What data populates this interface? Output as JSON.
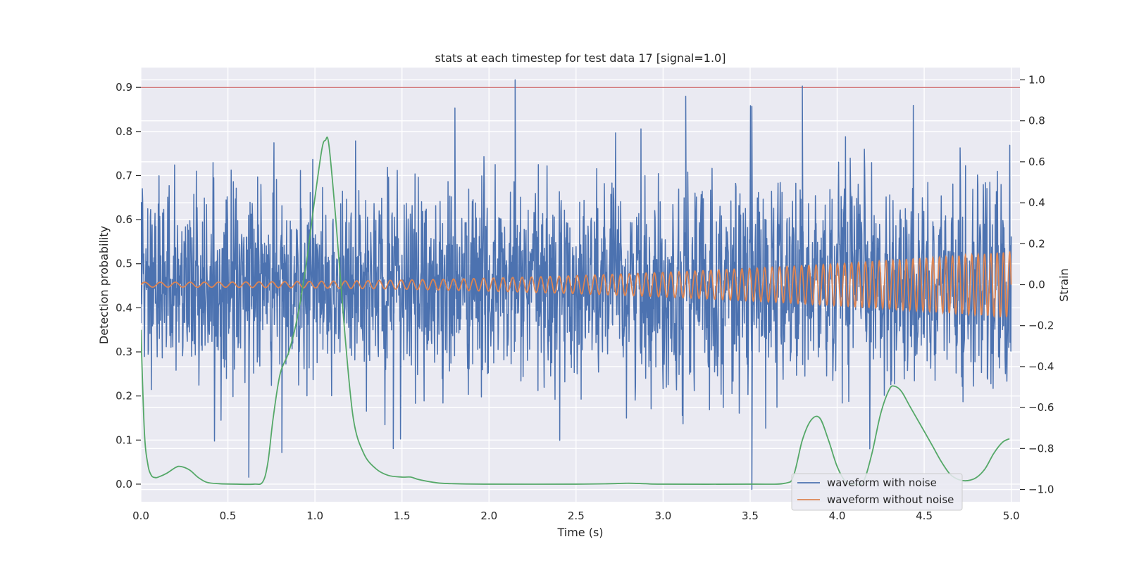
{
  "chart_data": {
    "type": "line",
    "title": "stats at each timestep for test data 17 [signal=1.0]",
    "xlabel": "Time (s)",
    "ylabel_left": "Detection probability",
    "ylabel_right": "Strain",
    "xlim": [
      0.0,
      5.05
    ],
    "ylim_left": [
      -0.04,
      0.945
    ],
    "ylim_right": [
      -1.06,
      1.06
    ],
    "x_ticks": [
      0.0,
      0.5,
      1.0,
      1.5,
      2.0,
      2.5,
      3.0,
      3.5,
      4.0,
      4.5,
      5.0
    ],
    "x_tick_labels": [
      "0.0",
      "0.5",
      "1.0",
      "1.5",
      "2.0",
      "2.5",
      "3.0",
      "3.5",
      "4.0",
      "4.5",
      "5.0"
    ],
    "y_left_ticks": [
      0.0,
      0.1,
      0.2,
      0.3,
      0.4,
      0.5,
      0.6,
      0.7,
      0.8,
      0.9
    ],
    "y_left_tick_labels": [
      "0.0",
      "0.1",
      "0.2",
      "0.3",
      "0.4",
      "0.5",
      "0.6",
      "0.7",
      "0.8",
      "0.9"
    ],
    "y_right_ticks": [
      -1.0,
      -0.8,
      -0.6,
      -0.4,
      -0.2,
      0.0,
      0.2,
      0.4,
      0.6,
      0.8,
      1.0
    ],
    "y_right_tick_labels": [
      "−1.0",
      "−0.8",
      "−0.6",
      "−0.4",
      "−0.2",
      "0.0",
      "0.2",
      "0.4",
      "0.6",
      "0.8",
      "1.0"
    ],
    "grid": true,
    "legend_position": "bottom-right",
    "threshold_line": {
      "y_left": 0.9,
      "color": "#c44e52"
    },
    "series": [
      {
        "name": "waveform with noise",
        "axis": "right",
        "color": "#4c72b0",
        "noise_std": 0.24,
        "x_range": [
          0.0,
          5.0
        ],
        "peaks": [
          {
            "x": 2.15,
            "y": 1.0
          },
          {
            "x": 3.8,
            "y": 0.97
          },
          {
            "x": 3.13,
            "y": 0.92
          },
          {
            "x": 3.51,
            "y": 0.87
          },
          {
            "x": 3.51,
            "y": -1.0
          },
          {
            "x": 0.62,
            "y": -0.94
          },
          {
            "x": 0.81,
            "y": -0.82
          },
          {
            "x": 1.45,
            "y": -0.8
          }
        ]
      },
      {
        "name": "waveform without noise",
        "axis": "right",
        "color": "#dd8452",
        "x_range": [
          0.0,
          5.0
        ],
        "amplitude_start": 0.012,
        "amplitude_end": 0.16,
        "frequency_start_hz": 11,
        "frequency_end_hz": 28
      },
      {
        "name": "",
        "axis": "left",
        "color": "#55a868",
        "x": [
          0.0,
          0.02,
          0.04,
          0.06,
          0.08,
          0.1,
          0.15,
          0.2,
          0.23,
          0.28,
          0.33,
          0.38,
          0.45,
          0.55,
          0.65,
          0.7,
          0.73,
          0.76,
          0.8,
          0.85,
          0.9,
          0.95,
          1.0,
          1.04,
          1.06,
          1.08,
          1.12,
          1.17,
          1.22,
          1.28,
          1.35,
          1.42,
          1.5,
          1.55,
          1.6,
          1.7,
          1.8,
          2.0,
          2.5,
          2.7,
          2.8,
          2.9,
          3.0,
          3.5,
          3.7,
          3.75,
          3.8,
          3.85,
          3.9,
          3.95,
          4.0,
          4.05,
          4.1,
          4.15,
          4.2,
          4.25,
          4.3,
          4.33,
          4.37,
          4.42,
          4.5,
          4.55,
          4.6,
          4.65,
          4.7,
          4.75,
          4.8,
          4.85,
          4.9,
          4.95,
          4.99
        ],
        "values": [
          0.35,
          0.12,
          0.045,
          0.02,
          0.015,
          0.016,
          0.025,
          0.038,
          0.04,
          0.032,
          0.015,
          0.004,
          0.001,
          0.0,
          0.0,
          0.005,
          0.05,
          0.15,
          0.25,
          0.3,
          0.38,
          0.5,
          0.65,
          0.76,
          0.78,
          0.77,
          0.6,
          0.35,
          0.15,
          0.07,
          0.035,
          0.02,
          0.016,
          0.016,
          0.01,
          0.003,
          0.001,
          0.0,
          0.0,
          0.001,
          0.002,
          0.001,
          0.0,
          0.0,
          0.002,
          0.02,
          0.1,
          0.145,
          0.15,
          0.1,
          0.04,
          0.005,
          0.0,
          0.005,
          0.07,
          0.16,
          0.215,
          0.222,
          0.21,
          0.175,
          0.12,
          0.085,
          0.05,
          0.022,
          0.01,
          0.008,
          0.015,
          0.035,
          0.07,
          0.095,
          0.103
        ]
      }
    ]
  }
}
